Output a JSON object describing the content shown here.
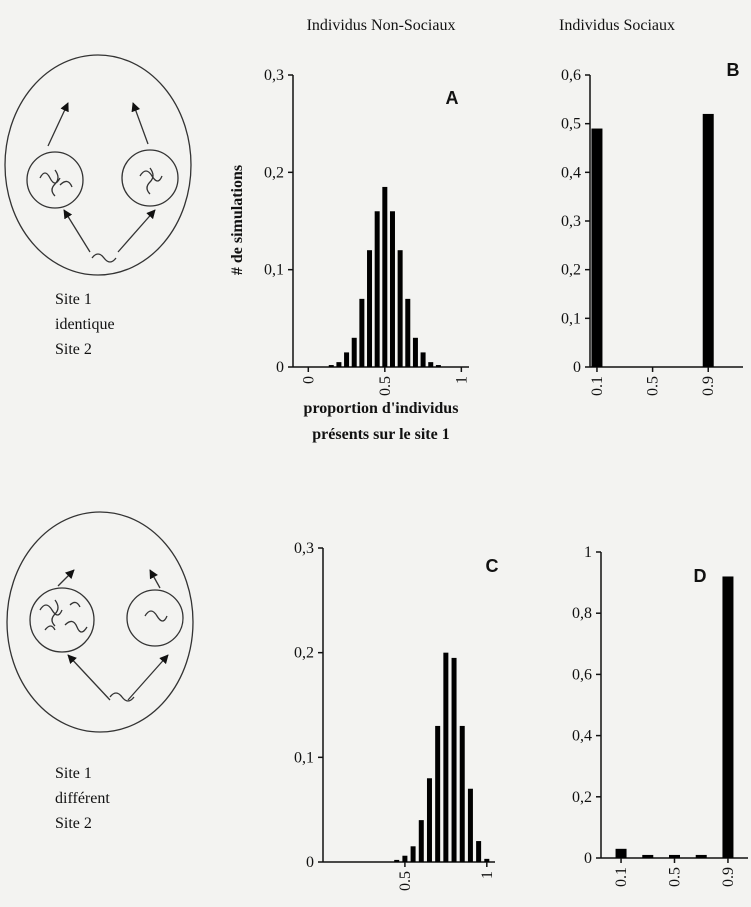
{
  "headers": [
    "Individus Non-Sociaux",
    "Individus Sociaux"
  ],
  "diagrams": [
    {
      "lines": [
        "Site 1",
        "identique",
        "Site 2"
      ]
    },
    {
      "lines": [
        "Site 1",
        "différent",
        "Site 2"
      ]
    }
  ],
  "y_label": "# de simulations",
  "x_label": [
    "proportion d'individus",
    "présents sur le site 1"
  ],
  "chart_data": [
    {
      "type": "bar",
      "panel": "A",
      "color": "#000000",
      "x": [
        0.15,
        0.2,
        0.25,
        0.3,
        0.35,
        0.4,
        0.45,
        0.5,
        0.55,
        0.6,
        0.65,
        0.7,
        0.75,
        0.8,
        0.85
      ],
      "values": [
        0.002,
        0.005,
        0.015,
        0.03,
        0.07,
        0.12,
        0.16,
        0.185,
        0.16,
        0.12,
        0.07,
        0.03,
        0.015,
        0.005,
        0.002
      ],
      "xlim": [
        -0.1,
        1.05
      ],
      "xticks": [
        0,
        0.5,
        1
      ],
      "ylim": [
        0,
        0.3
      ],
      "yticks": [
        0,
        {
          "value": 0.1,
          "label": "0,1"
        },
        {
          "value": 0.2,
          "label": "0,2"
        },
        {
          "value": 0.3,
          "label": "0,3"
        }
      ]
    },
    {
      "type": "bar",
      "panel": "B",
      "color": "#000000",
      "x": [
        0.1,
        0.9
      ],
      "values": [
        0.49,
        0.52
      ],
      "xlim": [
        0.05,
        1.15
      ],
      "xticks": [
        0.1,
        0.5,
        0.9
      ],
      "ylim": [
        0,
        0.6
      ],
      "yticks": [
        0,
        {
          "value": 0.1,
          "label": "0,1"
        },
        {
          "value": 0.2,
          "label": "0,2"
        },
        {
          "value": 0.3,
          "label": "0,3"
        },
        {
          "value": 0.4,
          "label": "0,4"
        },
        {
          "value": 0.5,
          "label": "0,5"
        },
        {
          "value": 0.6,
          "label": "0,6"
        }
      ]
    },
    {
      "type": "bar",
      "panel": "C",
      "color": "#000000",
      "x": [
        0.45,
        0.5,
        0.55,
        0.6,
        0.65,
        0.7,
        0.75,
        0.8,
        0.85,
        0.9,
        0.95,
        1.0
      ],
      "values": [
        0.002,
        0.006,
        0.015,
        0.04,
        0.08,
        0.13,
        0.2,
        0.195,
        0.13,
        0.07,
        0.02,
        0.003
      ],
      "xlim": [
        0,
        1.05
      ],
      "xticks": [
        0.5,
        1
      ],
      "ylim": [
        0,
        0.3
      ],
      "yticks": [
        0,
        {
          "value": 0.1,
          "label": "0,1"
        },
        {
          "value": 0.2,
          "label": "0,2"
        },
        {
          "value": 0.3,
          "label": "0,3"
        }
      ]
    },
    {
      "type": "bar",
      "panel": "D",
      "color": "#000000",
      "x": [
        0.1,
        0.3,
        0.5,
        0.7,
        0.9
      ],
      "values": [
        0.03,
        0.01,
        0.01,
        0.01,
        0.92
      ],
      "xlim": [
        -0.05,
        1.05
      ],
      "xticks": [
        0.1,
        0.5,
        0.9
      ],
      "ylim": [
        0,
        1
      ],
      "yticks": [
        0,
        {
          "value": 0.2,
          "label": "0,2"
        },
        {
          "value": 0.4,
          "label": "0,4"
        },
        {
          "value": 0.6,
          "label": "0,6"
        },
        {
          "value": 0.8,
          "label": "0,8"
        },
        1
      ]
    }
  ]
}
